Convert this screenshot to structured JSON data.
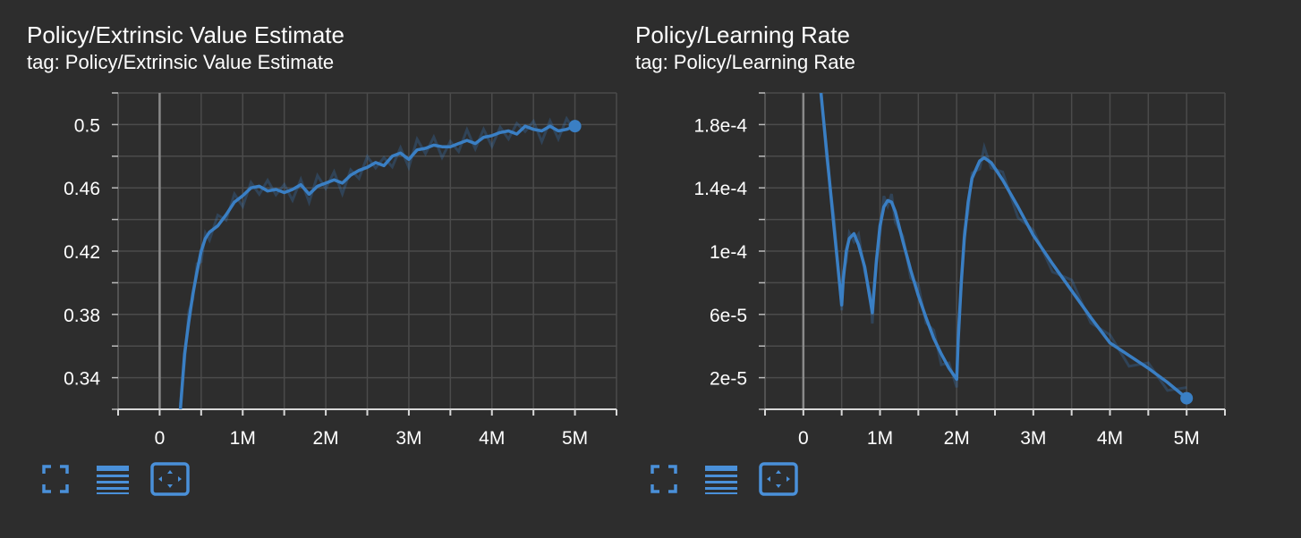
{
  "charts": [
    {
      "title": "Policy/Extrinsic Value Estimate",
      "subtitle": "tag: Policy/Extrinsic Value Estimate"
    },
    {
      "title": "Policy/Learning Rate",
      "subtitle": "tag: Policy/Learning Rate"
    }
  ],
  "toolbar": {
    "fullscreen_icon": "fullscreen-icon",
    "data_table_icon": "lines-icon",
    "fit_domain_icon": "fit-domain-icon",
    "accent": "#4a90d9"
  },
  "chart_data": [
    {
      "type": "line",
      "title": "Policy/Extrinsic Value Estimate",
      "xlabel": "",
      "ylabel": "",
      "xlim": [
        -500000,
        5500000
      ],
      "ylim": [
        0.32,
        0.52
      ],
      "x_ticks": [
        0,
        1000000,
        2000000,
        3000000,
        4000000,
        5000000
      ],
      "x_tick_labels": [
        "0",
        "1M",
        "2M",
        "3M",
        "4M",
        "5M"
      ],
      "y_ticks": [
        0.34,
        0.38,
        0.42,
        0.46,
        0.5
      ],
      "y_tick_labels": [
        "0.34",
        "0.38",
        "0.42",
        "0.46",
        "0.5"
      ],
      "grid": true,
      "series": [
        {
          "color": "#3a7fc4",
          "x": [
            250000,
            300000,
            350000,
            400000,
            450000,
            500000,
            550000,
            600000,
            700000,
            800000,
            900000,
            1000000,
            1100000,
            1200000,
            1300000,
            1400000,
            1500000,
            1600000,
            1700000,
            1800000,
            1900000,
            2000000,
            2100000,
            2200000,
            2300000,
            2400000,
            2500000,
            2600000,
            2700000,
            2800000,
            2900000,
            3000000,
            3100000,
            3200000,
            3300000,
            3400000,
            3500000,
            3600000,
            3700000,
            3800000,
            3900000,
            4000000,
            4100000,
            4200000,
            4300000,
            4400000,
            4500000,
            4600000,
            4700000,
            4800000,
            4900000,
            5000000
          ],
          "y": [
            0.32,
            0.355,
            0.375,
            0.393,
            0.407,
            0.42,
            0.428,
            0.432,
            0.436,
            0.443,
            0.451,
            0.455,
            0.46,
            0.461,
            0.458,
            0.459,
            0.457,
            0.459,
            0.462,
            0.456,
            0.461,
            0.463,
            0.465,
            0.463,
            0.468,
            0.471,
            0.473,
            0.476,
            0.474,
            0.48,
            0.482,
            0.478,
            0.484,
            0.485,
            0.487,
            0.486,
            0.486,
            0.488,
            0.49,
            0.488,
            0.492,
            0.493,
            0.495,
            0.496,
            0.494,
            0.499,
            0.497,
            0.496,
            0.499,
            0.496,
            0.497,
            0.499
          ]
        }
      ]
    },
    {
      "type": "line",
      "title": "Policy/Learning Rate",
      "xlabel": "",
      "ylabel": "",
      "xlim": [
        -500000,
        5500000
      ],
      "ylim": [
        0.0,
        0.0002
      ],
      "x_ticks": [
        0,
        1000000,
        2000000,
        3000000,
        4000000,
        5000000
      ],
      "x_tick_labels": [
        "0",
        "1M",
        "2M",
        "3M",
        "4M",
        "5M"
      ],
      "y_ticks": [
        2e-05,
        6e-05,
        0.0001,
        0.00014,
        0.00018
      ],
      "y_tick_labels": [
        "2e-5",
        "6e-5",
        "1e-4",
        "1.4e-4",
        "1.8e-4"
      ],
      "grid": true,
      "series": [
        {
          "color": "#3a7fc4",
          "x": [
            230000,
            300000,
            400000,
            500000,
            520000,
            560000,
            600000,
            660000,
            720000,
            800000,
            880000,
            900000,
            950000,
            1000000,
            1050000,
            1100000,
            1150000,
            1200000,
            1300000,
            1400000,
            1500000,
            1600000,
            1700000,
            1800000,
            1900000,
            2000000,
            2020000,
            2060000,
            2100000,
            2150000,
            2200000,
            2300000,
            2360000,
            2450000,
            2600000,
            2800000,
            3000000,
            3250000,
            3500000,
            3750000,
            4000000,
            4250000,
            4500000,
            4750000,
            5000000
          ],
          "y": [
            0.0002,
            0.000165,
            0.000115,
            6.6e-05,
            8.2e-05,
            0.0001,
            0.000108,
            0.000111,
            0.000104,
            9e-05,
            6.7e-05,
            6.1e-05,
            9.2e-05,
            0.000116,
            0.000128,
            0.000132,
            0.000131,
            0.000125,
            0.000106,
            8.8e-05,
            7.2e-05,
            5.8e-05,
            4.5e-05,
            3.5e-05,
            2.6e-05,
            1.9e-05,
            4.4e-05,
            8e-05,
            0.000108,
            0.000131,
            0.000146,
            0.000157,
            0.000159,
            0.000156,
            0.000145,
            0.000128,
            0.00011,
            9.2e-05,
            7.5e-05,
            5.8e-05,
            4.2e-05,
            3.4e-05,
            2.6e-05,
            1.7e-05,
            7e-06
          ]
        }
      ]
    }
  ]
}
